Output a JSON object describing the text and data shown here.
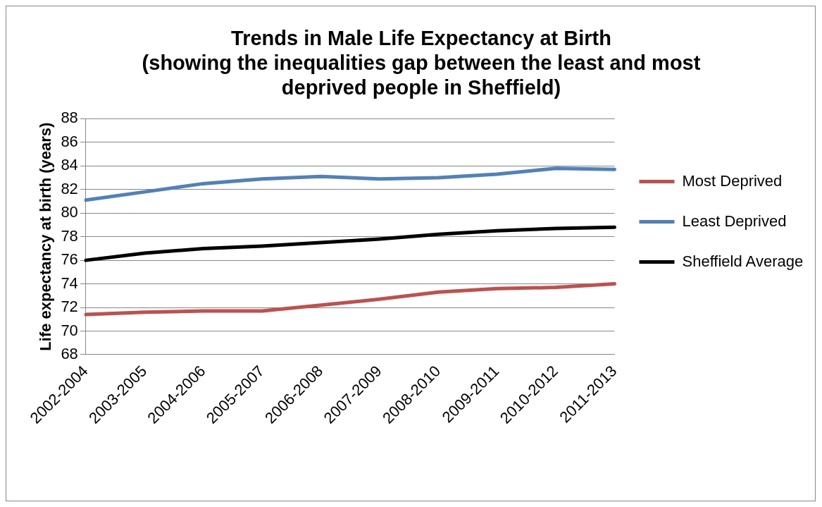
{
  "chart_data": {
    "type": "line",
    "title": [
      "Trends in Male Life Expectancy at Birth",
      "(showing the inequalities gap between the least and most",
      "deprived people in Sheffield)"
    ],
    "ylabel": "Life expectancy at birth (years)",
    "categories": [
      "2002-2004",
      "2003-2005",
      "2004-2006",
      "2005-2007",
      "2006-2008",
      "2007-2009",
      "2008-2010",
      "2009-2011",
      "2010-2012",
      "2011-2013"
    ],
    "series": [
      {
        "name": "Most Deprived",
        "color": "#c0504d",
        "values": [
          71.4,
          71.6,
          71.7,
          71.7,
          72.2,
          72.7,
          73.3,
          73.6,
          73.7,
          74.0
        ]
      },
      {
        "name": "Least Deprived",
        "color": "#4f81bd",
        "values": [
          81.1,
          81.8,
          82.5,
          82.9,
          83.1,
          82.9,
          83.0,
          83.3,
          83.8,
          83.7
        ]
      },
      {
        "name": "Sheffield Average",
        "color": "#000000",
        "values": [
          76.0,
          76.6,
          77.0,
          77.2,
          77.5,
          77.8,
          78.2,
          78.5,
          78.7,
          78.8
        ]
      }
    ],
    "ylim": [
      68,
      88
    ],
    "yticks": [
      68,
      70,
      72,
      74,
      76,
      78,
      80,
      82,
      84,
      86,
      88
    ],
    "grid": "y",
    "legend": "right",
    "marker": "none",
    "line_style": "solid"
  }
}
